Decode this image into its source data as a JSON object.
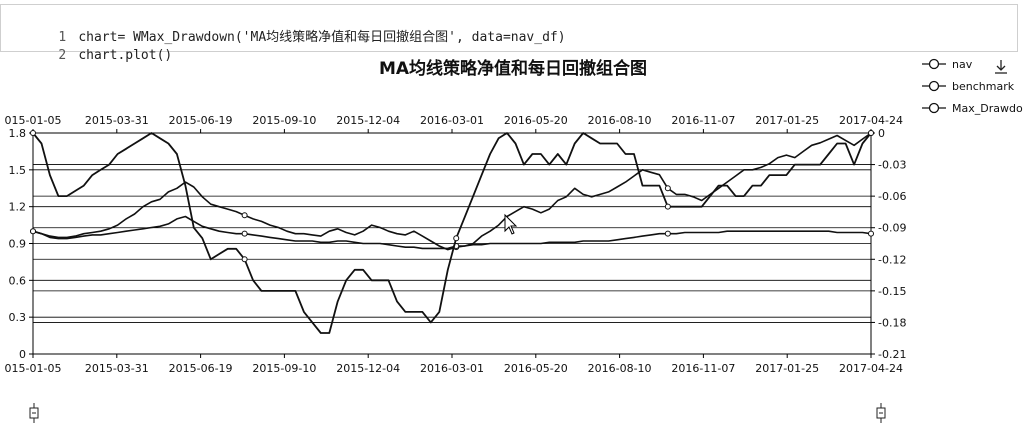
{
  "code": {
    "lines": [
      {
        "num": "1",
        "text": "chart= WMax_Drawdown('MA均线策略净值和每日回撤组合图', data=nav_df)"
      },
      {
        "num": "2",
        "text": "chart.plot()"
      }
    ]
  },
  "colors": {
    "line": "#111111",
    "grid": "#000000",
    "background": "#ffffff"
  },
  "toolbar": {
    "download_icon": "download-icon",
    "scroll_handle_icon": "slider-handle-icon"
  },
  "chart_data": {
    "type": "line",
    "title": "MA均线策略净值和每日回撤组合图",
    "x_tick_labels": [
      "015-01-05",
      "2015-03-31",
      "2015-06-19",
      "2015-09-10",
      "2015-12-04",
      "2016-03-01",
      "2016-05-20",
      "2016-08-10",
      "2016-11-07",
      "2017-01-25",
      "2017-04-24"
    ],
    "y_left": {
      "min": 0,
      "max": 1.8,
      "ticks": [
        "0",
        "0.3",
        "0.6",
        "0.9",
        "1.2",
        "1.5",
        "1.8"
      ]
    },
    "y_right": {
      "min": -0.21,
      "max": 0,
      "ticks": [
        "0",
        "-0.03",
        "-0.06",
        "-0.09",
        "-0.12",
        "-0.15",
        "-0.18",
        "-0.21"
      ]
    },
    "legend": {
      "position": "top-right",
      "entries": [
        "nav",
        "benchmark",
        "Max_Drawdo"
      ]
    },
    "grid": "horizontal",
    "x_points": 100,
    "series": [
      {
        "name": "nav",
        "axis": "left",
        "values": [
          1.0,
          0.98,
          0.96,
          0.95,
          0.95,
          0.96,
          0.98,
          0.99,
          1.0,
          1.02,
          1.05,
          1.1,
          1.14,
          1.2,
          1.24,
          1.26,
          1.32,
          1.35,
          1.4,
          1.36,
          1.28,
          1.22,
          1.2,
          1.18,
          1.16,
          1.13,
          1.1,
          1.08,
          1.05,
          1.03,
          1.0,
          0.98,
          0.98,
          0.97,
          0.96,
          1.0,
          1.02,
          0.99,
          0.97,
          1.0,
          1.05,
          1.03,
          1.0,
          0.98,
          0.97,
          1.0,
          0.96,
          0.92,
          0.88,
          0.85,
          0.87,
          0.88,
          0.9,
          0.96,
          1.0,
          1.05,
          1.12,
          1.16,
          1.2,
          1.18,
          1.15,
          1.18,
          1.25,
          1.28,
          1.35,
          1.3,
          1.28,
          1.3,
          1.32,
          1.36,
          1.4,
          1.45,
          1.5,
          1.48,
          1.46,
          1.35,
          1.3,
          1.3,
          1.28,
          1.25,
          1.3,
          1.35,
          1.4,
          1.45,
          1.5,
          1.5,
          1.52,
          1.55,
          1.6,
          1.62,
          1.6,
          1.65,
          1.7,
          1.72,
          1.75,
          1.78,
          1.74,
          1.7,
          1.75,
          1.8
        ]
      },
      {
        "name": "benchmark",
        "axis": "left",
        "values": [
          1.0,
          0.98,
          0.95,
          0.94,
          0.94,
          0.95,
          0.96,
          0.97,
          0.97,
          0.98,
          0.99,
          1.0,
          1.01,
          1.02,
          1.03,
          1.04,
          1.06,
          1.1,
          1.12,
          1.08,
          1.04,
          1.02,
          1.0,
          0.99,
          0.98,
          0.98,
          0.97,
          0.96,
          0.95,
          0.94,
          0.93,
          0.92,
          0.92,
          0.92,
          0.91,
          0.91,
          0.92,
          0.92,
          0.91,
          0.9,
          0.9,
          0.9,
          0.89,
          0.88,
          0.87,
          0.87,
          0.86,
          0.86,
          0.86,
          0.86,
          0.88,
          0.88,
          0.89,
          0.89,
          0.9,
          0.9,
          0.9,
          0.9,
          0.9,
          0.9,
          0.9,
          0.91,
          0.91,
          0.91,
          0.91,
          0.92,
          0.92,
          0.92,
          0.92,
          0.93,
          0.94,
          0.95,
          0.96,
          0.97,
          0.98,
          0.98,
          0.98,
          0.99,
          0.99,
          0.99,
          0.99,
          0.99,
          1.0,
          1.0,
          1.0,
          1.0,
          1.0,
          1.0,
          1.0,
          1.0,
          1.0,
          1.0,
          1.0,
          1.0,
          1.0,
          0.99,
          0.99,
          0.99,
          0.99,
          0.98
        ]
      },
      {
        "name": "Max_Drawdown",
        "axis": "right",
        "values": [
          0,
          -0.01,
          -0.04,
          -0.06,
          -0.06,
          -0.055,
          -0.05,
          -0.04,
          -0.035,
          -0.03,
          -0.02,
          -0.015,
          -0.01,
          -0.005,
          0,
          -0.005,
          -0.01,
          -0.02,
          -0.05,
          -0.09,
          -0.1,
          -0.12,
          -0.115,
          -0.11,
          -0.11,
          -0.12,
          -0.14,
          -0.15,
          -0.15,
          -0.15,
          -0.15,
          -0.15,
          -0.17,
          -0.18,
          -0.19,
          -0.19,
          -0.16,
          -0.14,
          -0.13,
          -0.13,
          -0.14,
          -0.14,
          -0.14,
          -0.16,
          -0.17,
          -0.17,
          -0.17,
          -0.18,
          -0.17,
          -0.13,
          -0.1,
          -0.08,
          -0.06,
          -0.04,
          -0.02,
          -0.005,
          0,
          -0.01,
          -0.03,
          -0.02,
          -0.02,
          -0.03,
          -0.02,
          -0.03,
          -0.01,
          0,
          -0.005,
          -0.01,
          -0.01,
          -0.01,
          -0.02,
          -0.02,
          -0.05,
          -0.05,
          -0.05,
          -0.07,
          -0.07,
          -0.07,
          -0.07,
          -0.07,
          -0.06,
          -0.05,
          -0.05,
          -0.06,
          -0.06,
          -0.05,
          -0.05,
          -0.04,
          -0.04,
          -0.04,
          -0.03,
          -0.03,
          -0.03,
          -0.03,
          -0.02,
          -0.01,
          -0.01,
          -0.03,
          -0.01,
          0
        ]
      }
    ]
  }
}
